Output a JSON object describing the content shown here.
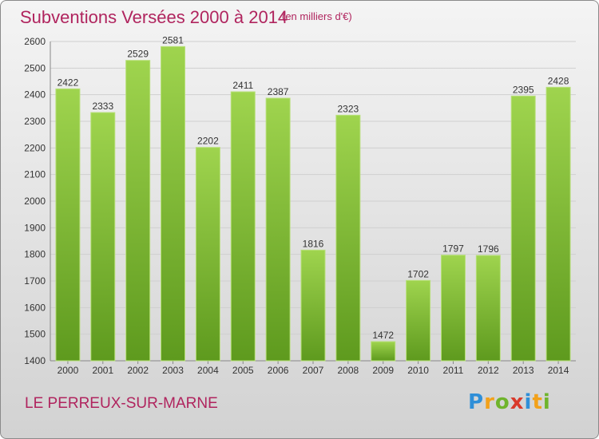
{
  "header": {
    "title": "Subventions Versées 2000 à 2014",
    "unit": "(en milliers d'€)"
  },
  "footer": {
    "commune": "LE PERREUX-SUR-MARNE",
    "logo_text": "Proxiti"
  },
  "colors": {
    "bar": "#8cc63f",
    "bar_dark": "#5e9a1e",
    "title": "#b0245e",
    "grid": "#cfcfcf"
  },
  "chart_data": {
    "type": "bar",
    "title": "Subventions Versées 2000 à 2014",
    "subtitle": "(en milliers d'€)",
    "categories": [
      "2000",
      "2001",
      "2002",
      "2003",
      "2004",
      "2005",
      "2006",
      "2007",
      "2008",
      "2009",
      "2010",
      "2011",
      "2012",
      "2013",
      "2014"
    ],
    "values": [
      2422,
      2333,
      2529,
      2581,
      2202,
      2411,
      2387,
      1816,
      2323,
      1472,
      1702,
      1797,
      1796,
      2395,
      2428
    ],
    "ylim": [
      1400,
      2600
    ],
    "yticks": [
      1400,
      1500,
      1600,
      1700,
      1800,
      1900,
      2000,
      2100,
      2200,
      2300,
      2400,
      2500,
      2600
    ],
    "grid": true,
    "legend": "none"
  }
}
